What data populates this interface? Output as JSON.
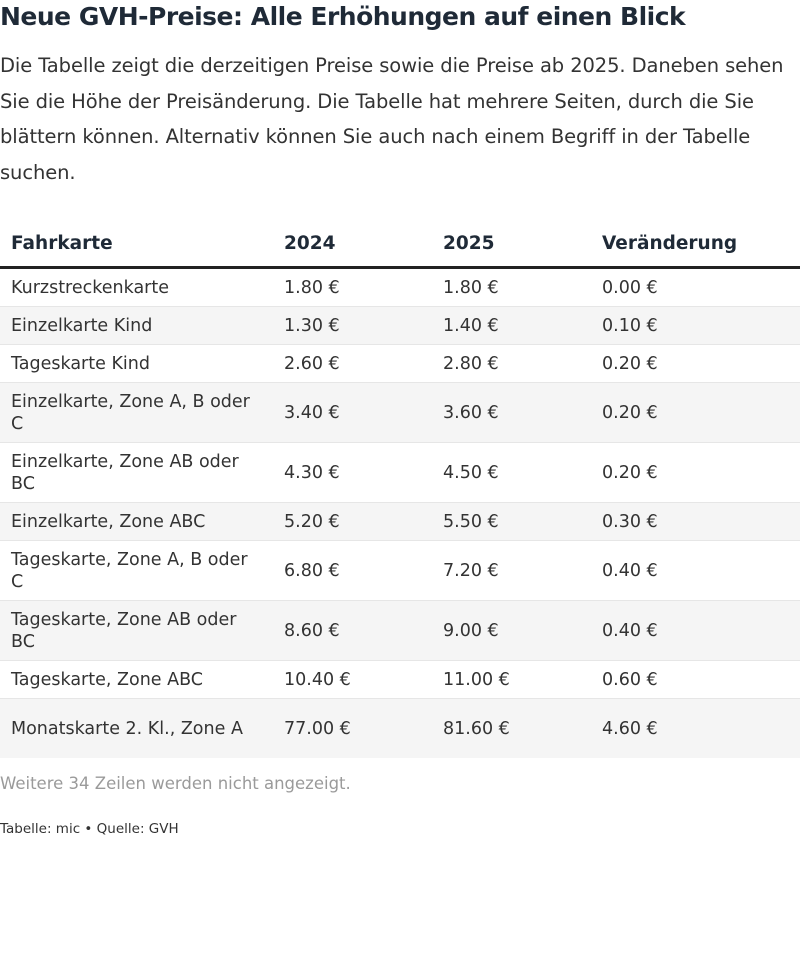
{
  "title": "Neue GVH-Preise: Alle Erhöhungen auf einen Blick",
  "description": "Die Tabelle zeigt die derzeitigen Preise sowie die Preise ab 2025. Daneben sehen Sie die Höhe der Preisänderung. Die Tabelle hat mehrere Seiten, durch die Sie blättern können. Alternativ können Sie auch nach einem Begriff in der Tabelle suchen.",
  "chart_data": {
    "type": "table",
    "columns": [
      "Fahrkarte",
      "2024",
      "2025",
      "Veränderung"
    ],
    "rows": [
      [
        "Kurzstreckenkarte",
        "1.80 €",
        "1.80 €",
        "0.00 €"
      ],
      [
        "Einzelkarte Kind",
        "1.30 €",
        "1.40 €",
        "0.10 €"
      ],
      [
        "Tageskarte Kind",
        "2.60 €",
        "2.80 €",
        "0.20 €"
      ],
      [
        "Einzelkarte, Zone A, B oder C",
        "3.40 €",
        "3.60 €",
        "0.20 €"
      ],
      [
        "Einzelkarte, Zone AB oder BC",
        "4.30 €",
        "4.50 €",
        "0.20 €"
      ],
      [
        "Einzelkarte, Zone ABC",
        "5.20 €",
        "5.50 €",
        "0.30 €"
      ],
      [
        "Tageskarte, Zone A, B oder C",
        "6.80 €",
        "7.20 €",
        "0.40 €"
      ],
      [
        "Tageskarte, Zone AB oder BC",
        "8.60 €",
        "9.00 €",
        "0.40 €"
      ],
      [
        "Tageskarte, Zone ABC",
        "10.40 €",
        "11.00 €",
        "0.60 €"
      ],
      [
        "Monatskarte 2. Kl., Zone A",
        "77.00 €",
        "81.60 €",
        "4.60 €"
      ]
    ],
    "more_rows_text": "Weitere 34 Zeilen werden nicht angezeigt."
  },
  "footer": {
    "source": "Tabelle: mic • Quelle: GVH"
  }
}
